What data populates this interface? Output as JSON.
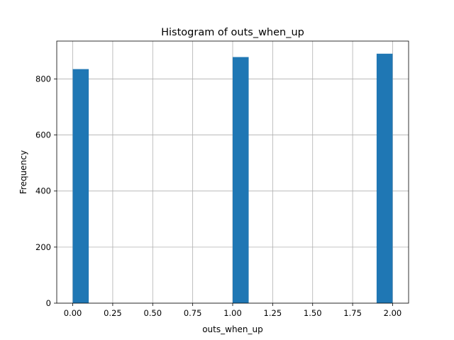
{
  "chart_data": {
    "type": "bar",
    "title": "Histogram of outs_when_up",
    "xlabel": "outs_when_up",
    "ylabel": "Frequency",
    "xlim": [
      -0.1,
      2.1
    ],
    "ylim": [
      0,
      935
    ],
    "grid": true,
    "bar_color": "#1f77b4",
    "grid_color": "#b0b0b0",
    "bins": [
      {
        "x0": 0.0,
        "x1": 0.1,
        "count": 835
      },
      {
        "x0": 0.1,
        "x1": 0.2,
        "count": 0
      },
      {
        "x0": 0.2,
        "x1": 0.3,
        "count": 0
      },
      {
        "x0": 0.3,
        "x1": 0.4,
        "count": 0
      },
      {
        "x0": 0.4,
        "x1": 0.5,
        "count": 0
      },
      {
        "x0": 0.5,
        "x1": 0.6,
        "count": 0
      },
      {
        "x0": 0.6,
        "x1": 0.7,
        "count": 0
      },
      {
        "x0": 0.7,
        "x1": 0.8,
        "count": 0
      },
      {
        "x0": 0.8,
        "x1": 0.9,
        "count": 0
      },
      {
        "x0": 0.9,
        "x1": 1.0,
        "count": 0
      },
      {
        "x0": 1.0,
        "x1": 1.1,
        "count": 878
      },
      {
        "x0": 1.1,
        "x1": 1.2,
        "count": 0
      },
      {
        "x0": 1.2,
        "x1": 1.3,
        "count": 0
      },
      {
        "x0": 1.3,
        "x1": 1.4,
        "count": 0
      },
      {
        "x0": 1.4,
        "x1": 1.5,
        "count": 0
      },
      {
        "x0": 1.5,
        "x1": 1.6,
        "count": 0
      },
      {
        "x0": 1.6,
        "x1": 1.7,
        "count": 0
      },
      {
        "x0": 1.7,
        "x1": 1.8,
        "count": 0
      },
      {
        "x0": 1.8,
        "x1": 1.9,
        "count": 0
      },
      {
        "x0": 1.9,
        "x1": 2.0,
        "count": 890
      }
    ],
    "xticks": [
      0.0,
      0.25,
      0.5,
      0.75,
      1.0,
      1.25,
      1.5,
      1.75,
      2.0
    ],
    "xtick_labels": [
      "0.00",
      "0.25",
      "0.50",
      "0.75",
      "1.00",
      "1.25",
      "1.50",
      "1.75",
      "2.00"
    ],
    "yticks": [
      0,
      200,
      400,
      600,
      800
    ],
    "ytick_labels": [
      "0",
      "200",
      "400",
      "600",
      "800"
    ]
  }
}
